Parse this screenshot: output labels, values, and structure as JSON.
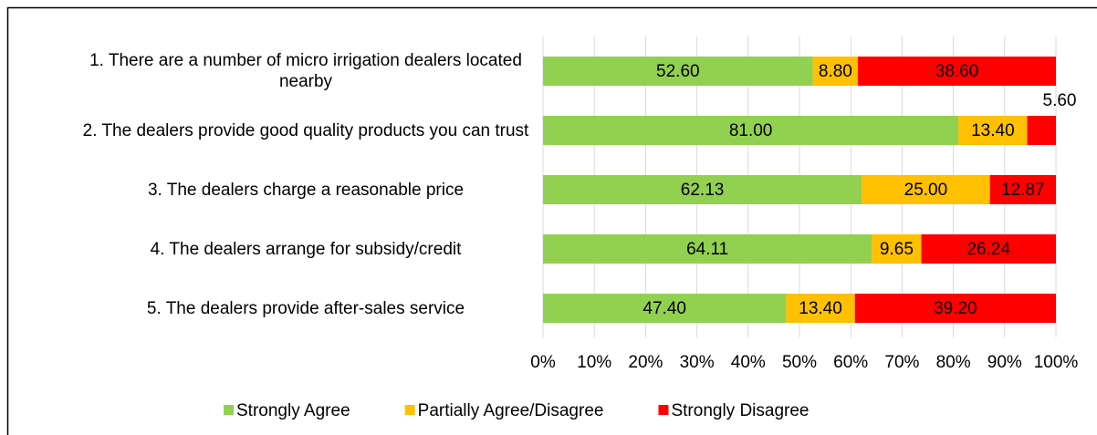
{
  "chart_data": {
    "type": "stacked_barh",
    "categories": [
      "1. There are a number of micro irrigation dealers located nearby",
      "2. The dealers provide good quality products you can trust",
      "3. The dealers charge a reasonable price",
      "4. The dealers arrange for subsidy/credit",
      "5. The dealers provide after-sales service"
    ],
    "series": [
      {
        "name": "Strongly Agree",
        "color": "#92d050",
        "values": [
          52.6,
          81,
          62.13,
          64.11,
          47.4
        ],
        "value_labels": [
          "52.60",
          "81.00",
          "62.13",
          "64.11",
          "47.40"
        ]
      },
      {
        "name": "Partially Agree/Disagree",
        "color": "#ffc000",
        "values": [
          8.8,
          13.4,
          25,
          9.65,
          13.4
        ],
        "value_labels": [
          "8.80",
          "13.40",
          "25.00",
          "9.65",
          "13.40"
        ]
      },
      {
        "name": "Strongly Disagree",
        "color": "#ff0000",
        "values": [
          38.6,
          5.6,
          12.87,
          26.24,
          39.2
        ],
        "value_labels": [
          "38.60",
          "5.60",
          "12.87",
          "26.24",
          "39.20"
        ]
      }
    ],
    "xlim": [
      0,
      100
    ],
    "xticks": [
      {
        "value": 0,
        "label": "0%"
      },
      {
        "value": 10,
        "label": "10%"
      },
      {
        "value": 20,
        "label": "20%"
      },
      {
        "value": 30,
        "label": "30%"
      },
      {
        "value": 40,
        "label": "40%"
      },
      {
        "value": 50,
        "label": "50%"
      },
      {
        "value": 60,
        "label": "60%"
      },
      {
        "value": 70,
        "label": "70%"
      },
      {
        "value": 80,
        "label": "80%"
      },
      {
        "value": 90,
        "label": "90%"
      },
      {
        "value": 100,
        "label": "100%"
      }
    ],
    "grid": true,
    "legend": "bottom"
  }
}
